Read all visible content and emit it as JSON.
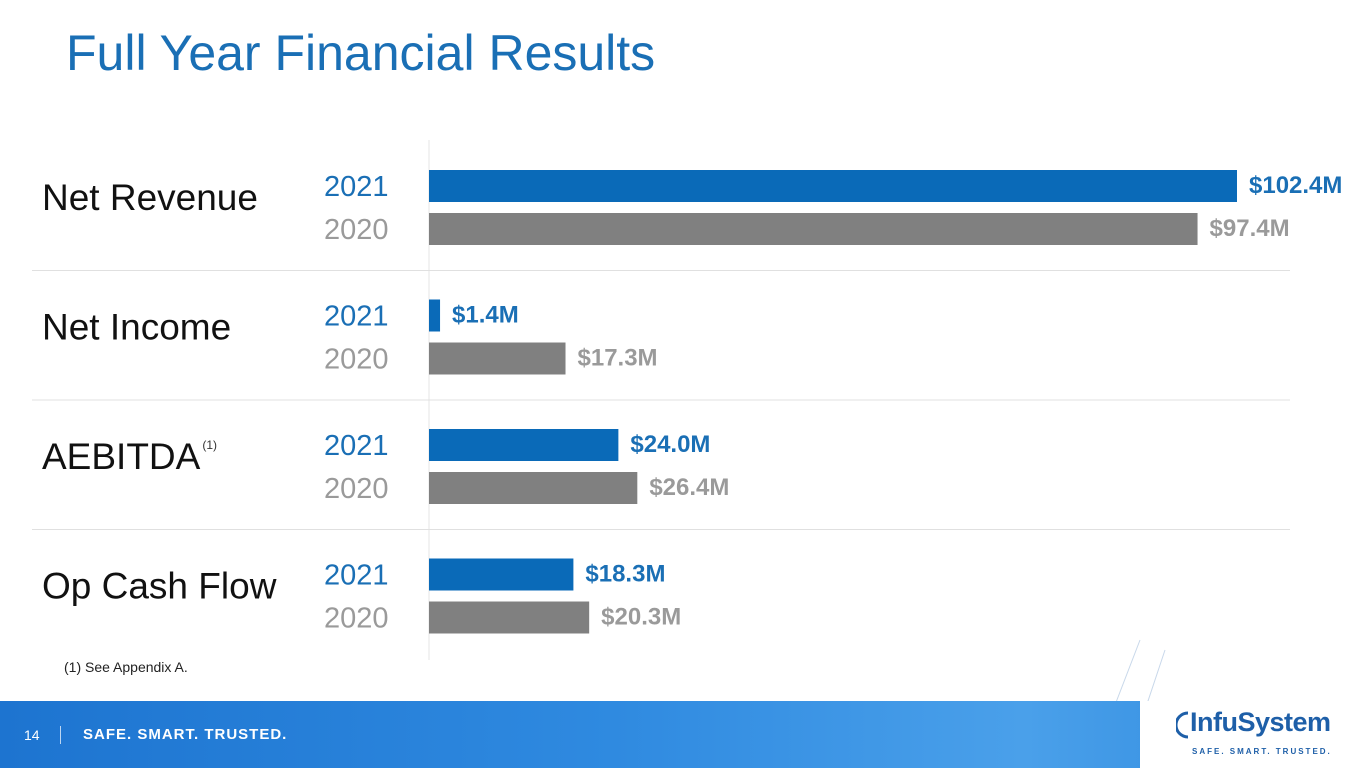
{
  "slide": {
    "title": "Full Year Financial Results",
    "footnote": "(1) See Appendix A."
  },
  "footer": {
    "page_number": "14",
    "tagline": "SAFE. SMART. TRUSTED.",
    "logo_text": "InfuSystem",
    "logo_tagline": "SAFE. SMART. TRUSTED."
  },
  "colors": {
    "title_blue": "#1a6fb5",
    "bar_2021": "#0a6ab8",
    "bar_2020": "#808080",
    "label_2021": "#1a6fb5",
    "label_2020": "#9a9a9a"
  },
  "chart_data": {
    "type": "bar",
    "orientation": "horizontal",
    "groups": [
      {
        "metric": "Net Revenue",
        "superscript": "",
        "bars": [
          {
            "year": "2021",
            "value": 102.4,
            "label": "$102.4M"
          },
          {
            "year": "2020",
            "value": 97.4,
            "label": "$97.4M"
          }
        ]
      },
      {
        "metric": "Net Income",
        "superscript": "",
        "bars": [
          {
            "year": "2021",
            "value": 1.4,
            "label": "$1.4M"
          },
          {
            "year": "2020",
            "value": 17.3,
            "label": "$17.3M"
          }
        ]
      },
      {
        "metric": "AEBITDA",
        "superscript": "(1)",
        "bars": [
          {
            "year": "2021",
            "value": 24.0,
            "label": "$24.0M"
          },
          {
            "year": "2020",
            "value": 26.4,
            "label": "$26.4M"
          }
        ]
      },
      {
        "metric": "Op Cash Flow",
        "superscript": "",
        "bars": [
          {
            "year": "2021",
            "value": 18.3,
            "label": "$18.3M"
          },
          {
            "year": "2020",
            "value": 20.3,
            "label": "$20.3M"
          }
        ]
      }
    ],
    "unit": "$M",
    "legend": "none",
    "grid": false
  }
}
